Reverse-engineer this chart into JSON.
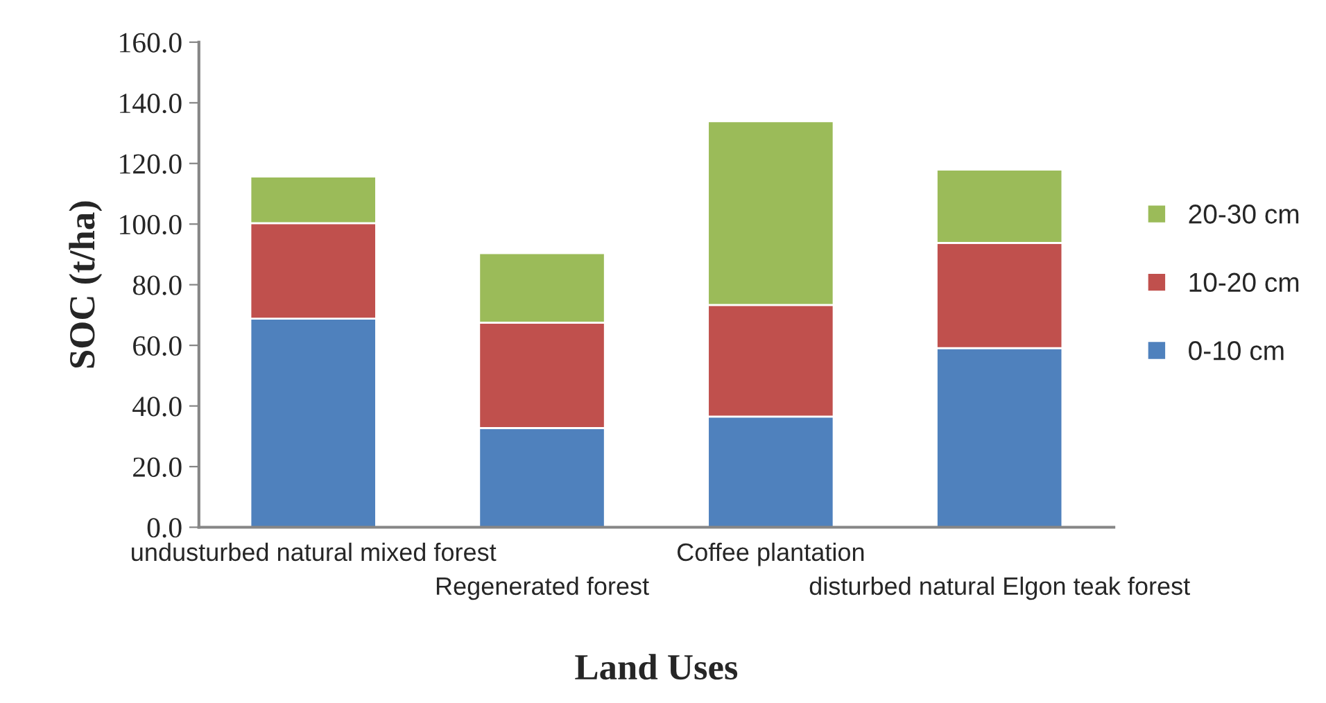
{
  "chart_data": {
    "type": "bar",
    "stacked": true,
    "xlabel": "Land Uses",
    "ylabel": "SOC (t/ha)",
    "categories": [
      "undusturbed natural mixed forest",
      "Regenerated forest",
      "Coffee plantation",
      "disturbed natural Elgon teak forest"
    ],
    "series": [
      {
        "name": "0-10 cm",
        "color": "#4f81bd",
        "values": [
          68.8,
          32.7,
          36.5,
          59.1
        ]
      },
      {
        "name": "10-20 cm",
        "color": "#c0504d",
        "values": [
          31.5,
          34.8,
          36.8,
          34.7
        ]
      },
      {
        "name": "20-30 cm",
        "color": "#9bbb59",
        "values": [
          15.4,
          22.9,
          60.6,
          24.2
        ]
      }
    ],
    "ylim": [
      0,
      160
    ],
    "yticks": [
      {
        "value": 0,
        "label": "0.0"
      },
      {
        "value": 20,
        "label": "20.0"
      },
      {
        "value": 40,
        "label": "40.0"
      },
      {
        "value": 60,
        "label": "60.0"
      },
      {
        "value": 80,
        "label": "80.0"
      },
      {
        "value": 100,
        "label": "100.0"
      },
      {
        "value": 120,
        "label": "120.0"
      },
      {
        "value": 140,
        "label": "140.0"
      },
      {
        "value": 160,
        "label": "160.0"
      }
    ],
    "legend": "right",
    "grid": false
  }
}
